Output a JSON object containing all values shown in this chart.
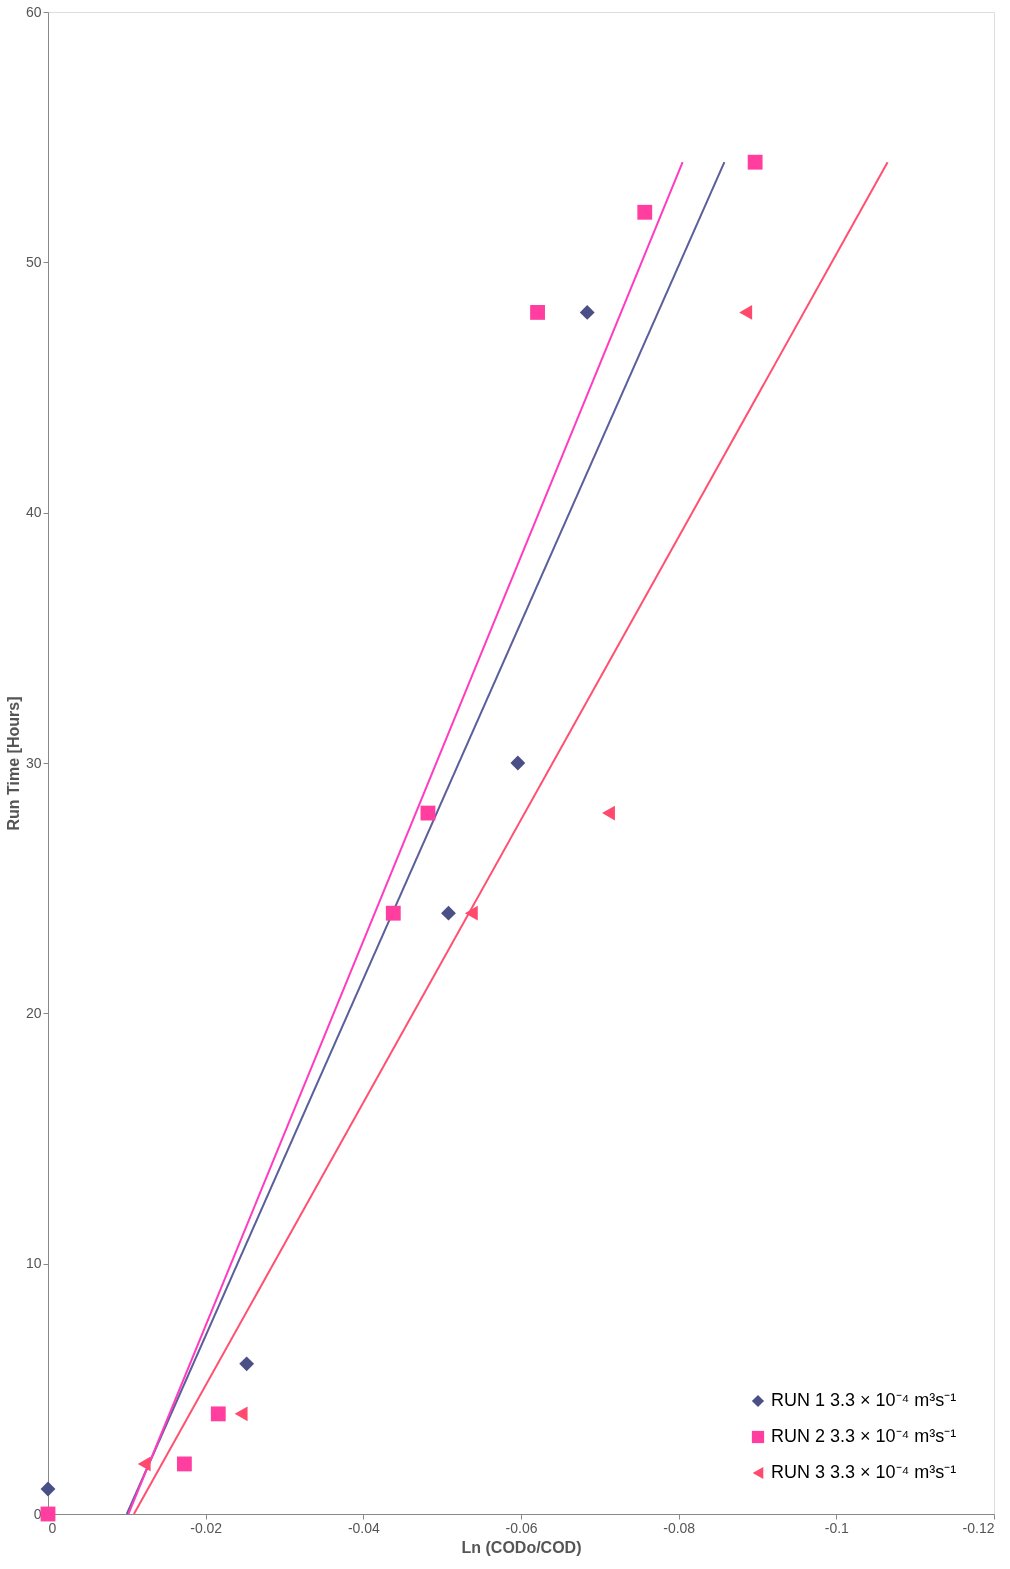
{
  "chart_data": {
    "type": "scatter",
    "xlabel": "Ln (CODo/COD)",
    "ylabel": "Run Time [Hours]",
    "xlim": [
      0,
      -0.12
    ],
    "xticks": [
      0,
      -0.02,
      -0.04,
      -0.06,
      -0.08,
      -0.1,
      -0.12
    ],
    "ylim": [
      0,
      60
    ],
    "yticks": [
      0,
      10,
      20,
      30,
      40,
      50,
      60
    ],
    "grid": false,
    "legend": "bottom right",
    "series": [
      {
        "name": "RUN 1  3.3 × 10⁻⁴ m³s⁻¹",
        "marker": "diamond",
        "color": "#4a4f86",
        "x": [
          0,
          -0.0252,
          -0.0508,
          -0.0596,
          -0.0684
        ],
        "values": [
          1,
          6,
          24,
          30,
          48
        ]
      },
      {
        "name": "RUN 2  3.3 × 10⁻⁴ m³s⁻¹",
        "marker": "square",
        "color": "#ff3ea0",
        "x": [
          0,
          -0.0173,
          -0.0216,
          -0.0438,
          -0.0482,
          -0.0621,
          -0.0757,
          -0.0897
        ],
        "values": [
          0,
          2,
          4,
          24,
          28,
          48,
          52,
          54
        ]
      },
      {
        "name": "RUN 3  3.3 × 10⁻⁴ m³s⁻¹",
        "marker": "triangle",
        "color": "#ff4a6e",
        "x": [
          -0.0122,
          -0.0245,
          -0.0537,
          -0.0711,
          -0.0885
        ],
        "values": [
          2,
          4,
          24,
          28,
          48
        ]
      },
      {
        "type": "line",
        "color": "#5a5e9a",
        "x": [
          -0.01,
          -0.0858
        ],
        "values": [
          0,
          54
        ]
      },
      {
        "type": "line",
        "color": "#ff3cc0",
        "x": [
          -0.0102,
          -0.0805
        ],
        "values": [
          0,
          54
        ]
      },
      {
        "type": "line",
        "color": "#ff5070",
        "x": [
          -0.0109,
          -0.1065
        ],
        "values": [
          0,
          54
        ]
      }
    ]
  }
}
